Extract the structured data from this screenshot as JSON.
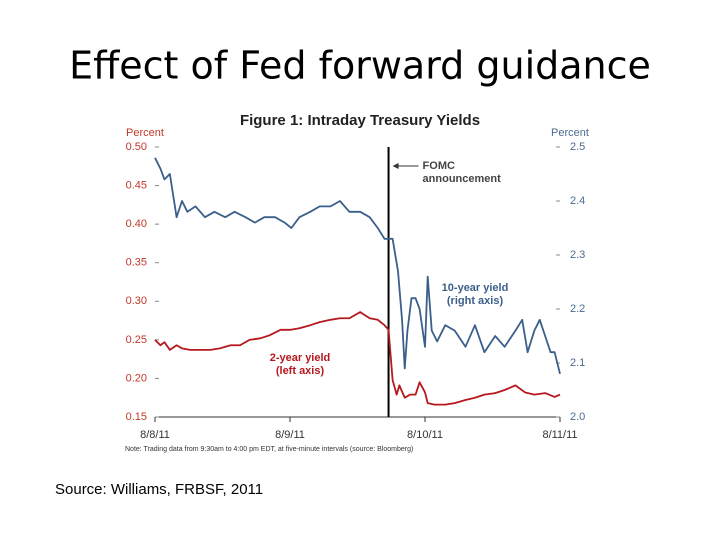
{
  "slide_title": "Effect of Fed forward guidance",
  "source": "Source:  Williams, FRBSF, 2011",
  "chart_data": {
    "type": "line",
    "title": "Figure 1: Intraday Treasury Yields",
    "y_label": "Percent",
    "y2_label": "Percent",
    "note": "Note: Trading data from 9:30am to 4:00 pm EDT, at five-minute intervals (source: Bloomberg)",
    "xlim": [
      0,
      3
    ],
    "xticks": [
      {
        "value": 0,
        "label": "8/8/11"
      },
      {
        "value": 1,
        "label": "8/9/11"
      },
      {
        "value": 2,
        "label": "8/10/11"
      },
      {
        "value": 3,
        "label": "8/11/11"
      }
    ],
    "ylim": [
      0.15,
      0.5
    ],
    "yticks": [
      {
        "value": 0.5,
        "label": "0.50"
      },
      0.45,
      {
        "value": 0.4,
        "label": "0.40"
      },
      0.35,
      {
        "value": 0.3,
        "label": "0.30"
      },
      0.25,
      {
        "value": 0.2,
        "label": "0.20"
      },
      0.15
    ],
    "y2lim": [
      2.0,
      2.5
    ],
    "y2ticks": [
      2.5,
      2.4,
      2.3,
      2.2,
      2.1,
      {
        "value": 2.0,
        "label": "2.0"
      }
    ],
    "event": {
      "x": 1.73,
      "label_lines": [
        "FOMC",
        "announcement"
      ]
    },
    "series": [
      {
        "name": "10-year yield",
        "label_note": "(right axis)",
        "axis": "y2",
        "color": "#3b5f8a",
        "x": [
          0,
          0.04,
          0.07,
          0.11,
          0.16,
          0.2,
          0.24,
          0.3,
          0.37,
          0.44,
          0.52,
          0.59,
          0.67,
          0.74,
          0.81,
          0.89,
          0.96,
          1.01,
          1.07,
          1.15,
          1.22,
          1.3,
          1.37,
          1.44,
          1.52,
          1.59,
          1.65,
          1.7,
          1.73,
          1.76,
          1.8,
          1.83,
          1.85,
          1.87,
          1.9,
          1.93,
          1.96,
          2.0,
          2.02,
          2.05,
          2.09,
          2.15,
          2.22,
          2.3,
          2.37,
          2.44,
          2.52,
          2.59,
          2.67,
          2.72,
          2.76,
          2.81,
          2.85,
          2.89,
          2.93,
          2.96,
          3.0
        ],
        "values": [
          2.48,
          2.46,
          2.44,
          2.45,
          2.37,
          2.4,
          2.38,
          2.39,
          2.37,
          2.38,
          2.37,
          2.38,
          2.37,
          2.36,
          2.37,
          2.37,
          2.36,
          2.35,
          2.37,
          2.38,
          2.39,
          2.39,
          2.4,
          2.38,
          2.38,
          2.37,
          2.35,
          2.33,
          2.33,
          2.33,
          2.27,
          2.18,
          2.09,
          2.16,
          2.22,
          2.22,
          2.2,
          2.13,
          2.26,
          2.16,
          2.14,
          2.17,
          2.16,
          2.13,
          2.17,
          2.12,
          2.15,
          2.13,
          2.16,
          2.18,
          2.12,
          2.16,
          2.18,
          2.15,
          2.12,
          2.12,
          2.08
        ]
      },
      {
        "name": "2-year yield",
        "label_note": "(left axis)",
        "axis": "y",
        "color": "#b5181e",
        "x": [
          0,
          0.04,
          0.07,
          0.11,
          0.16,
          0.2,
          0.26,
          0.33,
          0.41,
          0.48,
          0.56,
          0.63,
          0.7,
          0.78,
          0.85,
          0.93,
          1.0,
          1.07,
          1.15,
          1.22,
          1.3,
          1.37,
          1.44,
          1.52,
          1.59,
          1.65,
          1.7,
          1.73,
          1.76,
          1.79,
          1.81,
          1.85,
          1.89,
          1.93,
          1.96,
          2.0,
          2.02,
          2.07,
          2.15,
          2.22,
          2.3,
          2.37,
          2.44,
          2.52,
          2.59,
          2.67,
          2.74,
          2.81,
          2.89,
          2.96,
          3.0
        ],
        "values": [
          0.25,
          0.243,
          0.247,
          0.237,
          0.243,
          0.239,
          0.237,
          0.237,
          0.237,
          0.239,
          0.243,
          0.243,
          0.25,
          0.252,
          0.256,
          0.263,
          0.263,
          0.265,
          0.269,
          0.273,
          0.276,
          0.278,
          0.278,
          0.286,
          0.278,
          0.276,
          0.269,
          0.263,
          0.198,
          0.179,
          0.191,
          0.175,
          0.179,
          0.179,
          0.195,
          0.182,
          0.168,
          0.166,
          0.166,
          0.168,
          0.172,
          0.175,
          0.179,
          0.181,
          0.185,
          0.191,
          0.182,
          0.179,
          0.181,
          0.176,
          0.179
        ]
      }
    ]
  }
}
